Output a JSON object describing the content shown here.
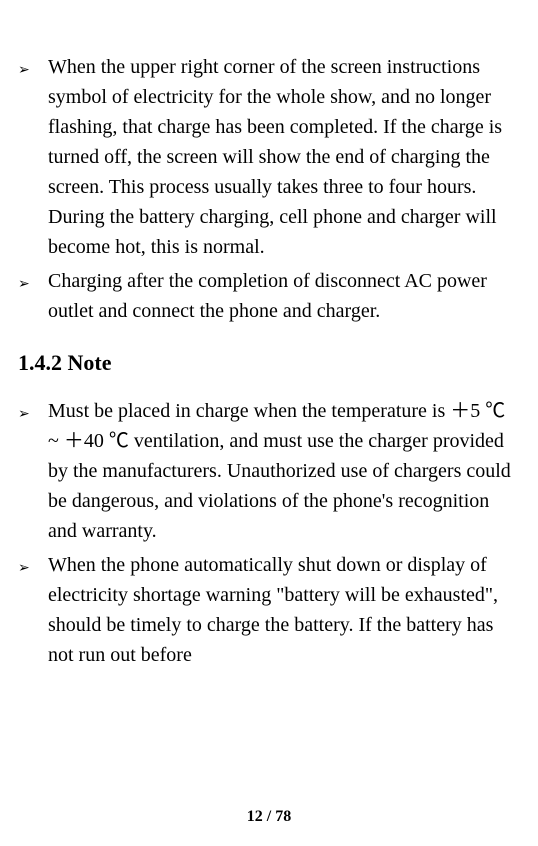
{
  "bullets_section1": [
    "When the upper right corner of the screen instructions symbol of electricity for the whole show, and no longer flashing, that charge has been completed. If the charge is turned off, the screen will show the end of charging the screen. This process usually takes three to four hours. During the battery charging, cell phone and charger will become hot, this is normal.",
    "Charging after the completion of disconnect AC power outlet and connect the phone and charger."
  ],
  "heading": "1.4.2 Note",
  "bullets_section2": [
    "Must be placed in charge when the temperature is ＋5 ℃ ~ ＋40 ℃ ventilation, and must use the charger provided by the manufacturers. Unauthorized use of chargers could be dangerous, and violations of the phone's recognition and warranty.",
    "When the phone automatically shut down or display of electricity shortage warning \"battery will be exhausted\", should be timely to charge the battery. If the battery has not run out before"
  ],
  "footer": "12 / 78",
  "bullet_glyph": "➢"
}
